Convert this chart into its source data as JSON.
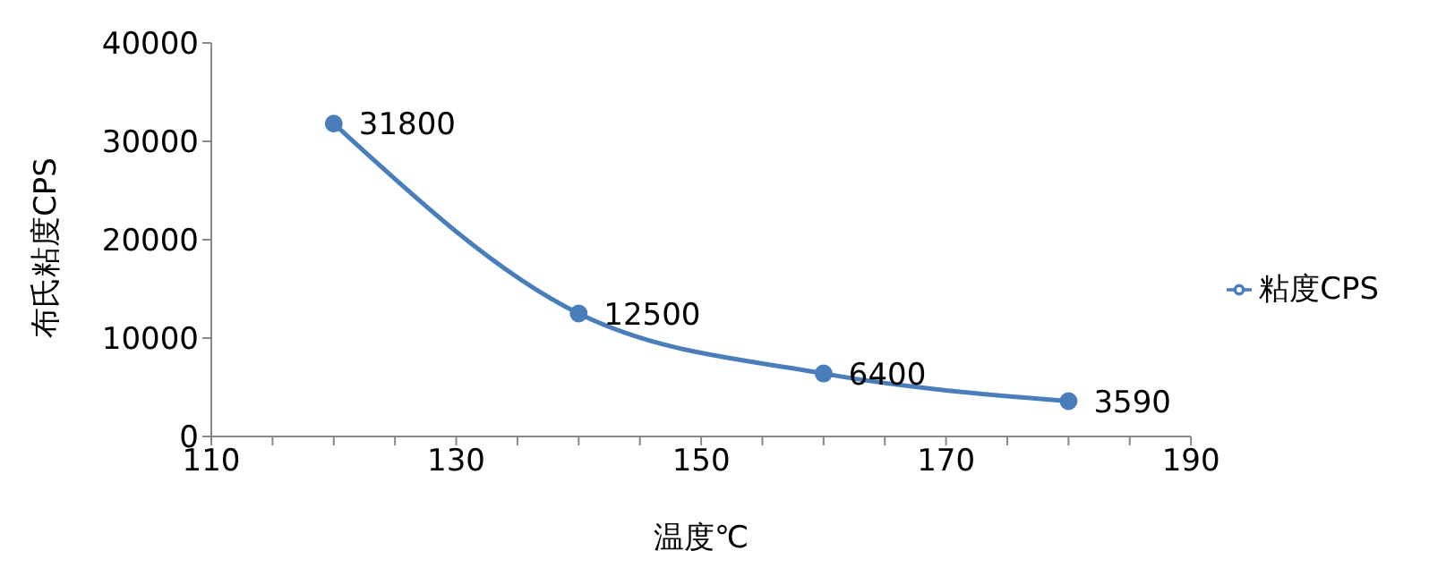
{
  "chart_data": {
    "type": "line",
    "xlabel": "温度℃",
    "ylabel": "布氏粘度CPS",
    "x": [
      120,
      140,
      160,
      180
    ],
    "series": [
      {
        "name": "粘度CPS",
        "color": "#4a7ebb",
        "values": [
          31800,
          12500,
          6400,
          3590
        ]
      }
    ],
    "xlim": [
      110,
      190
    ],
    "xticks": [
      110,
      {
        "value": 115,
        "label": null
      },
      {
        "value": 120,
        "label": null
      },
      {
        "value": 125,
        "label": null
      },
      130,
      {
        "value": 135,
        "label": null
      },
      {
        "value": 140,
        "label": null
      },
      {
        "value": 145,
        "label": null
      },
      150,
      {
        "value": 155,
        "label": null
      },
      {
        "value": 160,
        "label": null
      },
      {
        "value": 165,
        "label": null
      },
      170,
      {
        "value": 175,
        "label": null
      },
      {
        "value": 180,
        "label": null
      },
      {
        "value": 185,
        "label": null
      },
      190
    ],
    "ylim": [
      0,
      40000
    ],
    "yticks": [
      0,
      10000,
      20000,
      30000,
      40000
    ],
    "grid": false,
    "legend": "right",
    "marker": "circle",
    "line_style": "solid",
    "data_labels": true
  }
}
